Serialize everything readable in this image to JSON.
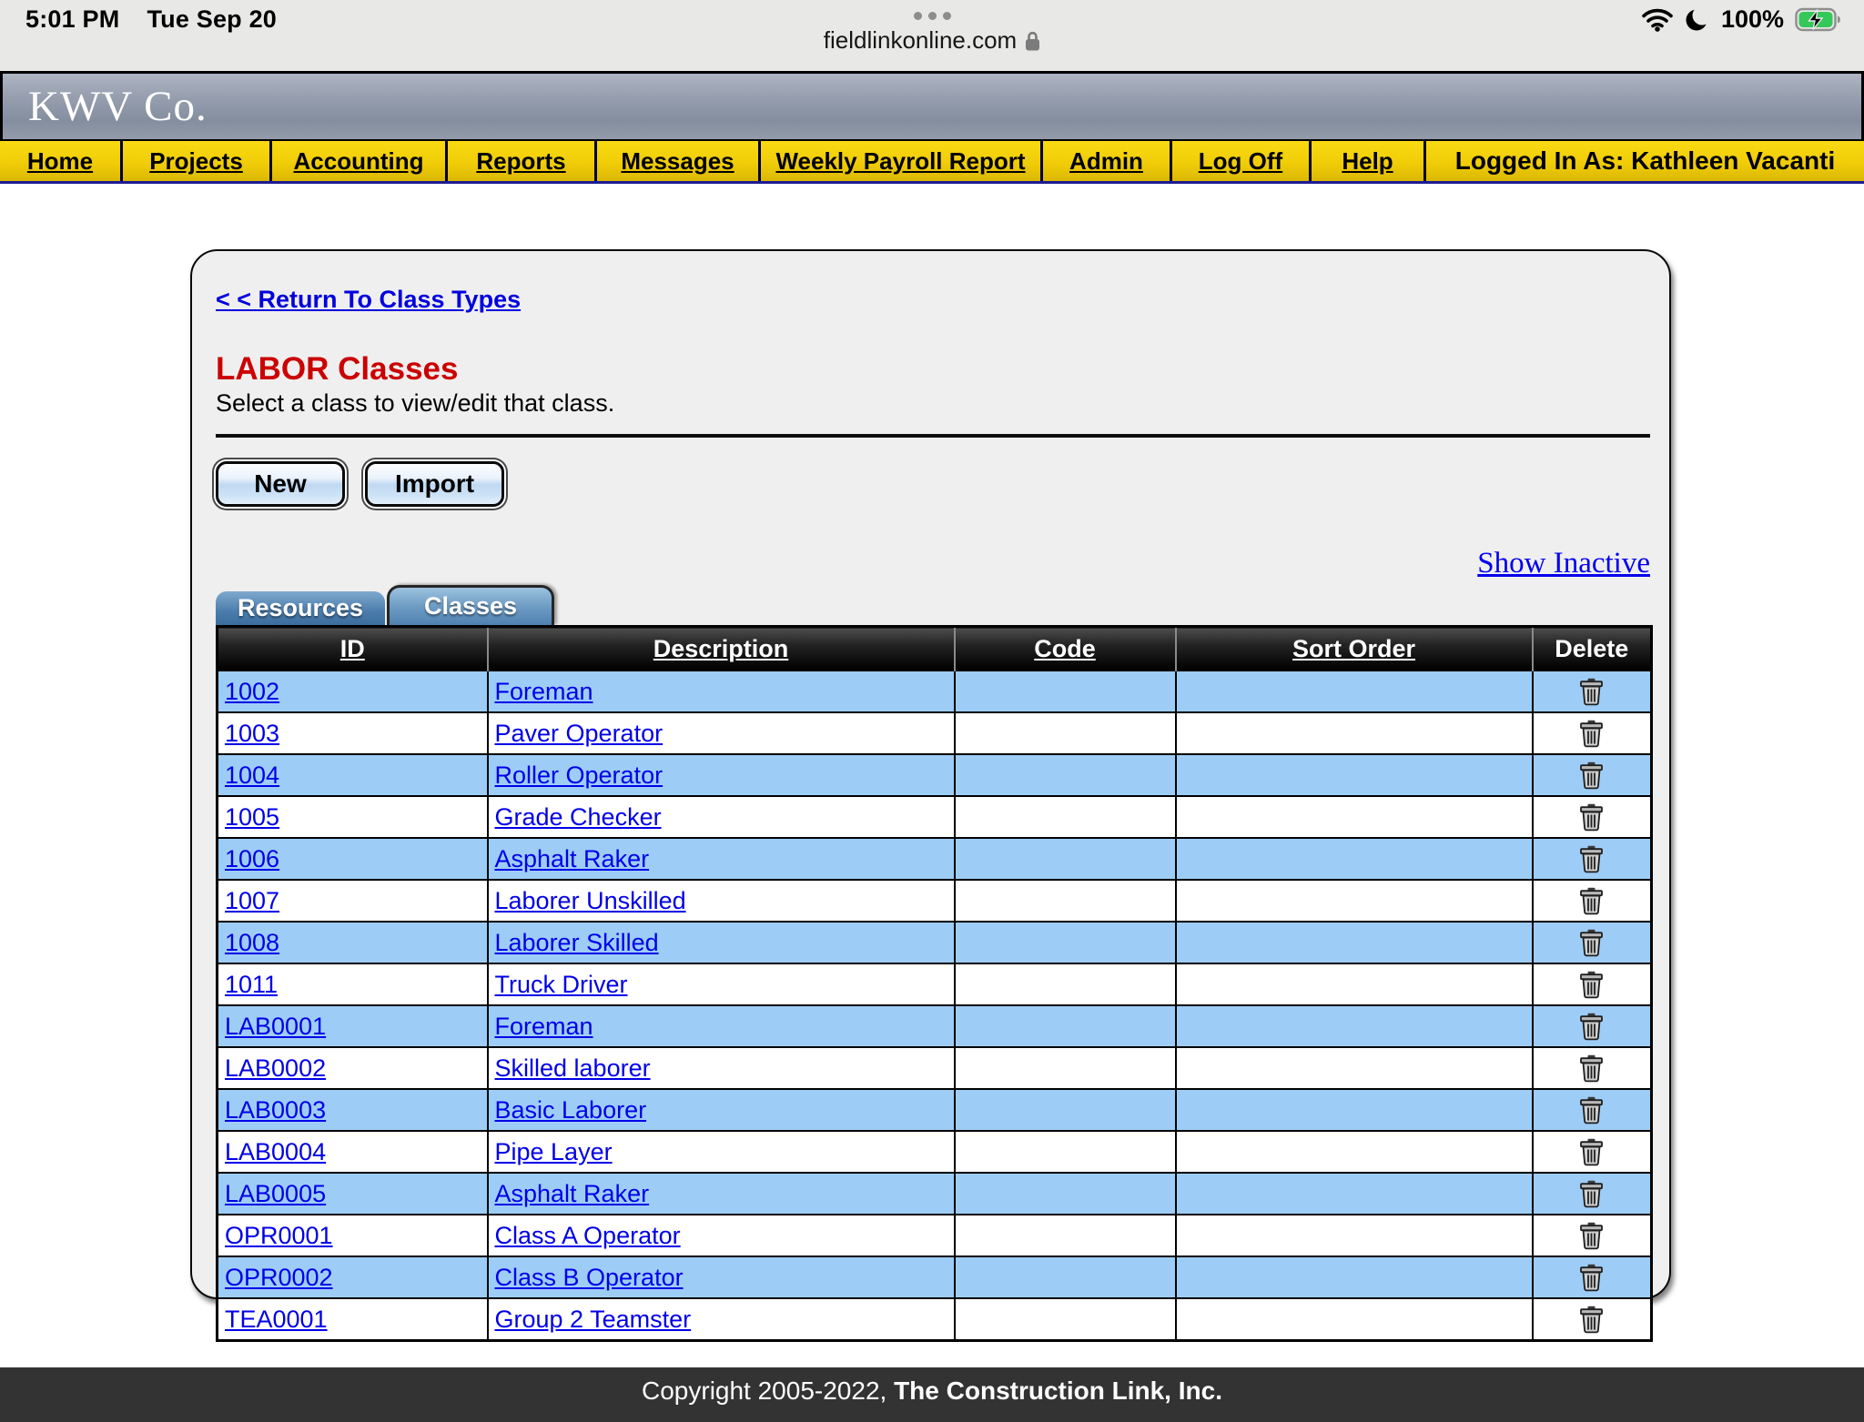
{
  "status_bar": {
    "time": "5:01 PM",
    "date": "Tue Sep 20",
    "url": "fieldlinkonline.com",
    "battery_percent": "100%",
    "icons": [
      "more-dots-icon",
      "lock-icon",
      "wifi-icon",
      "moon-icon",
      "battery-charging-icon"
    ]
  },
  "header": {
    "company": "KWV Co."
  },
  "nav": {
    "items": [
      "Home",
      "Projects",
      "Accounting",
      "Reports",
      "Messages",
      "Weekly Payroll Report",
      "Admin",
      "Log Off",
      "Help"
    ],
    "logged_in": "Logged In As: Kathleen Vacanti"
  },
  "page": {
    "return_link": "< < Return To Class Types",
    "title": "LABOR Classes",
    "subtitle": "Select a class to view/edit that class.",
    "buttons": {
      "new": "New",
      "import": "Import"
    },
    "show_inactive": "Show Inactive",
    "tabs": [
      {
        "label": "Resources",
        "active": false
      },
      {
        "label": "Classes",
        "active": true
      }
    ]
  },
  "table": {
    "columns": [
      "ID",
      "Description",
      "Code",
      "Sort Order",
      "Delete"
    ],
    "rows": [
      {
        "id": "1002",
        "description": "Foreman",
        "code": "",
        "sort_order": ""
      },
      {
        "id": "1003",
        "description": "Paver Operator",
        "code": "",
        "sort_order": ""
      },
      {
        "id": "1004",
        "description": "Roller Operator",
        "code": "",
        "sort_order": ""
      },
      {
        "id": "1005",
        "description": "Grade Checker",
        "code": "",
        "sort_order": ""
      },
      {
        "id": "1006",
        "description": "Asphalt Raker",
        "code": "",
        "sort_order": ""
      },
      {
        "id": "1007",
        "description": "Laborer Unskilled",
        "code": "",
        "sort_order": ""
      },
      {
        "id": "1008",
        "description": "Laborer Skilled",
        "code": "",
        "sort_order": ""
      },
      {
        "id": "1011",
        "description": "Truck Driver",
        "code": "",
        "sort_order": ""
      },
      {
        "id": "LAB0001",
        "description": "Foreman",
        "code": "",
        "sort_order": ""
      },
      {
        "id": "LAB0002",
        "description": "Skilled laborer",
        "code": "",
        "sort_order": ""
      },
      {
        "id": "LAB0003",
        "description": "Basic Laborer",
        "code": "",
        "sort_order": ""
      },
      {
        "id": "LAB0004",
        "description": "Pipe Layer",
        "code": "",
        "sort_order": ""
      },
      {
        "id": "LAB0005",
        "description": "Asphalt Raker",
        "code": "",
        "sort_order": ""
      },
      {
        "id": "OPR0001",
        "description": "Class A Operator",
        "code": "",
        "sort_order": ""
      },
      {
        "id": "OPR0002",
        "description": "Class B Operator",
        "code": "",
        "sort_order": ""
      },
      {
        "id": "TEA0001",
        "description": "Group 2 Teamster",
        "code": "",
        "sort_order": ""
      }
    ]
  },
  "footer": {
    "copyright_regular": "Copyright 2005-2022, ",
    "copyright_bold": "The Construction Link, Inc."
  },
  "colors": {
    "nav_yellow": "#f0cd08",
    "banner_gray_blue": "#99a1b1",
    "row_alt_blue": "#9dcdf7",
    "link_blue": "#0000e8",
    "heading_red": "#cc0000",
    "footer_bg": "#333333",
    "battery_green": "#34c759",
    "nav_underline_navy": "#1d1c92"
  }
}
